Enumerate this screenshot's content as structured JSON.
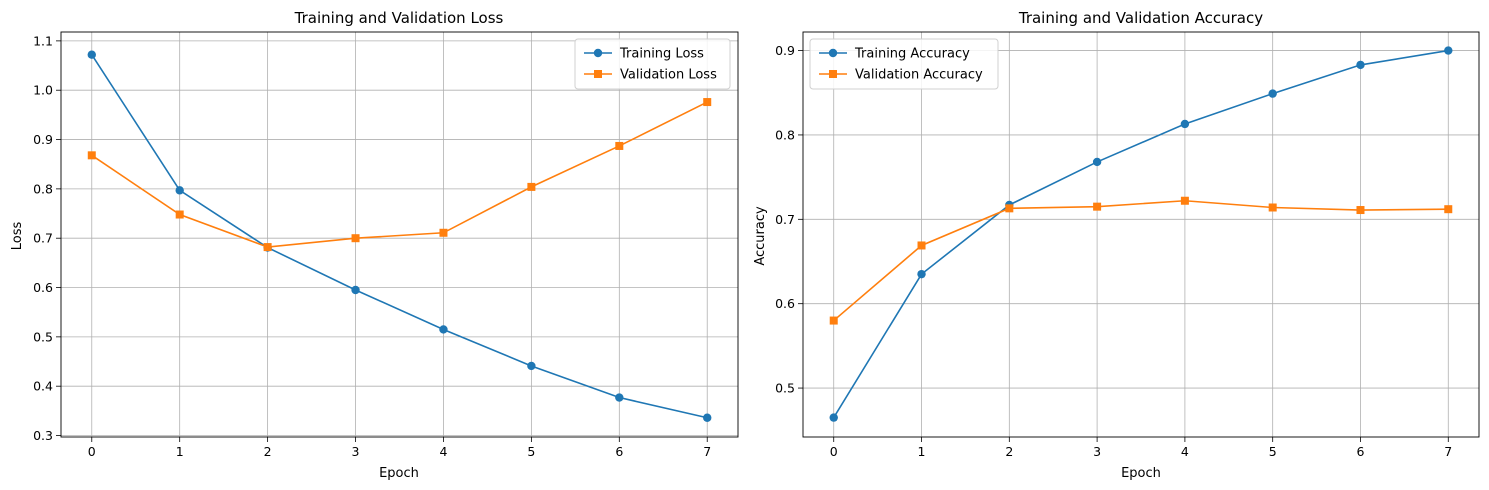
{
  "chart_data": [
    {
      "type": "line",
      "title": "Training and Validation Loss",
      "xlabel": "Epoch",
      "ylabel": "Loss",
      "x": [
        0,
        1,
        2,
        3,
        4,
        5,
        6,
        7
      ],
      "xlim": [
        -0.35,
        7.35
      ],
      "ylim": [
        0.297,
        1.118
      ],
      "xticks": [
        0,
        1,
        2,
        3,
        4,
        5,
        6,
        7
      ],
      "yticks": [
        0.3,
        0.4,
        0.5,
        0.6,
        0.7,
        0.8,
        0.9,
        1.0,
        1.1
      ],
      "ytick_labels": [
        "0.3",
        "0.4",
        "0.5",
        "0.6",
        "0.7",
        "0.8",
        "0.9",
        "1.0",
        "1.1"
      ],
      "grid": true,
      "legend_position": "top-right",
      "series": [
        {
          "name": "Training Loss",
          "marker": "circle",
          "color": "#1f77b4",
          "values": [
            1.072,
            0.797,
            0.681,
            0.595,
            0.515,
            0.441,
            0.377,
            0.336
          ]
        },
        {
          "name": "Validation Loss",
          "marker": "square",
          "color": "#ff7f0e",
          "values": [
            0.868,
            0.748,
            0.682,
            0.7,
            0.711,
            0.804,
            0.887,
            0.976
          ]
        }
      ]
    },
    {
      "type": "line",
      "title": "Training and Validation Accuracy",
      "xlabel": "Epoch",
      "ylabel": "Accuracy",
      "x": [
        0,
        1,
        2,
        3,
        4,
        5,
        6,
        7
      ],
      "xlim": [
        -0.35,
        7.35
      ],
      "ylim": [
        0.442,
        0.922
      ],
      "xticks": [
        0,
        1,
        2,
        3,
        4,
        5,
        6,
        7
      ],
      "yticks": [
        0.5,
        0.6,
        0.7,
        0.8,
        0.9
      ],
      "ytick_labels": [
        "0.5",
        "0.6",
        "0.7",
        "0.8",
        "0.9"
      ],
      "grid": true,
      "legend_position": "top-left",
      "series": [
        {
          "name": "Training Accuracy",
          "marker": "circle",
          "color": "#1f77b4",
          "values": [
            0.465,
            0.635,
            0.717,
            0.768,
            0.813,
            0.849,
            0.883,
            0.9
          ]
        },
        {
          "name": "Validation Accuracy",
          "marker": "square",
          "color": "#ff7f0e",
          "values": [
            0.58,
            0.669,
            0.713,
            0.715,
            0.722,
            0.714,
            0.711,
            0.712
          ]
        }
      ]
    }
  ]
}
